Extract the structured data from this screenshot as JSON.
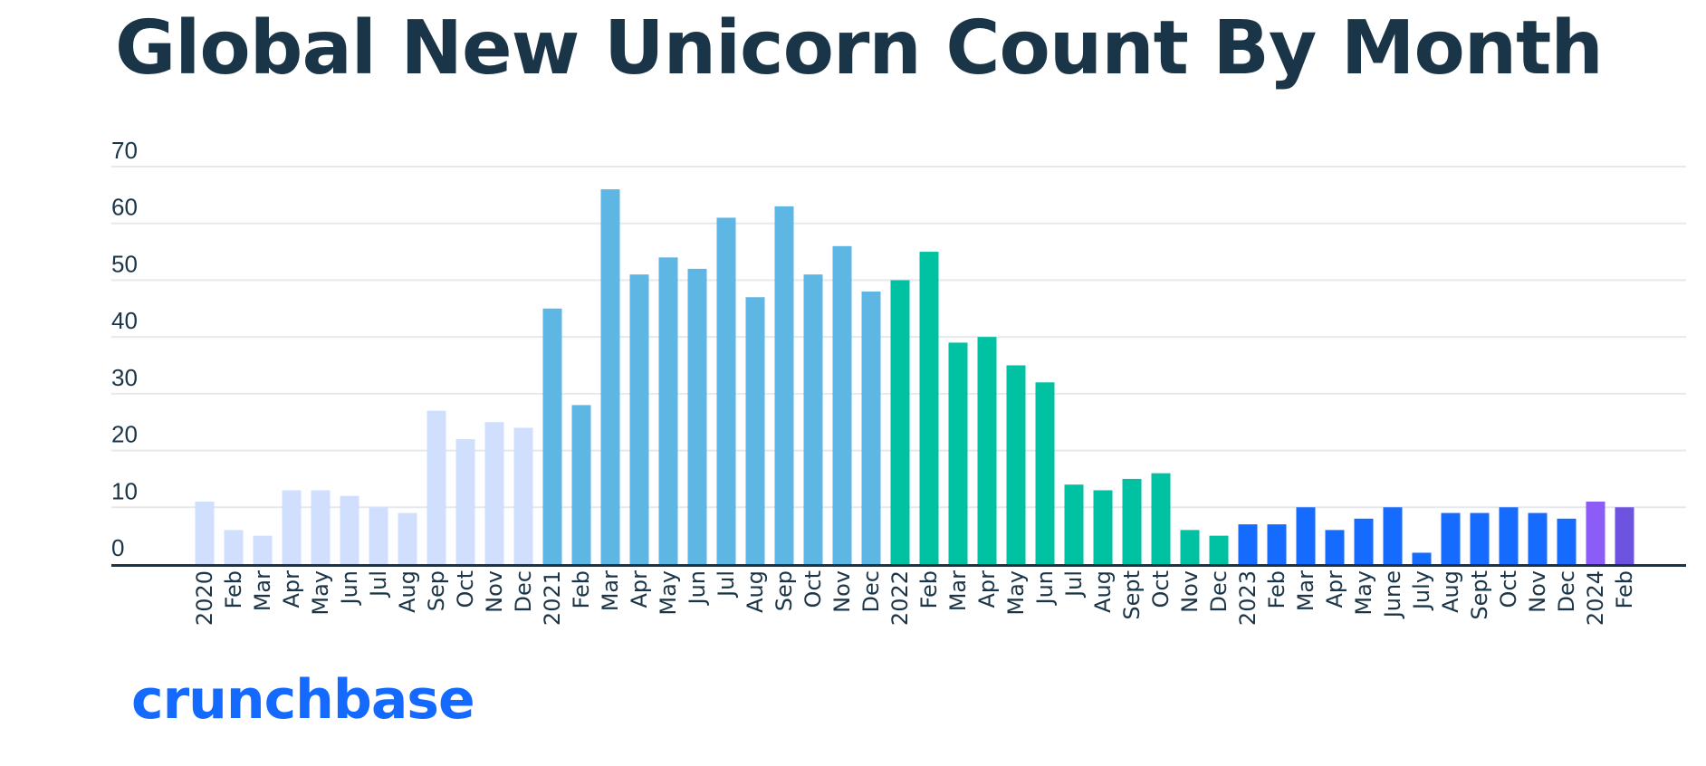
{
  "brand": "crunchbase",
  "chart_data": {
    "type": "bar",
    "title": "Global New Unicorn Count By Month",
    "xlabel": "",
    "ylabel": "",
    "ylim": [
      0,
      70
    ],
    "yticks": [
      0,
      10,
      20,
      30,
      40,
      50,
      60,
      70
    ],
    "grid": true,
    "legend": "none",
    "categories": [
      "2020",
      "Feb",
      "Mar",
      "Apr",
      "May",
      "Jun",
      "Jul",
      "Aug",
      "Sep",
      "Oct",
      "Nov",
      "Dec",
      "2021",
      "Feb",
      "Mar",
      "Apr",
      "May",
      "Jun",
      "Jul",
      "Aug",
      "Sep",
      "Oct",
      "Nov",
      "Dec",
      "2022",
      "Feb",
      "Mar",
      "Apr",
      "May",
      "Jun",
      "Jul",
      "Aug",
      "Sept",
      "Oct",
      "Nov",
      "Dec",
      "2023",
      "Feb",
      "Mar",
      "Apr",
      "May",
      "June",
      "July",
      "Aug",
      "Sept",
      "Oct",
      "Nov",
      "Dec",
      "2024",
      "Feb"
    ],
    "values": [
      11,
      6,
      5,
      13,
      13,
      12,
      10,
      9,
      27,
      22,
      25,
      24,
      45,
      28,
      66,
      51,
      54,
      52,
      61,
      47,
      63,
      51,
      56,
      48,
      50,
      55,
      39,
      40,
      35,
      32,
      14,
      13,
      15,
      16,
      6,
      5,
      7,
      7,
      10,
      6,
      8,
      10,
      2,
      9,
      9,
      10,
      9,
      8,
      11,
      10
    ],
    "groups": [
      {
        "year": "2020",
        "start": 0,
        "count": 12,
        "color": "#cfdffd"
      },
      {
        "year": "2021",
        "start": 12,
        "count": 12,
        "color": "#5eb6e4"
      },
      {
        "year": "2022",
        "start": 24,
        "count": 12,
        "color": "#00c2a2"
      },
      {
        "year": "2023",
        "start": 36,
        "count": 12,
        "color": "#166bff"
      },
      {
        "year": "2024",
        "start": 48,
        "count": 1,
        "color": "#8b5cf6"
      },
      {
        "year": "2024",
        "start": 49,
        "count": 1,
        "color": "#6e52e0"
      }
    ],
    "colors": {
      "axis": "#1b3548",
      "grid": "#e6e9ec",
      "text": "#1b3548"
    }
  }
}
